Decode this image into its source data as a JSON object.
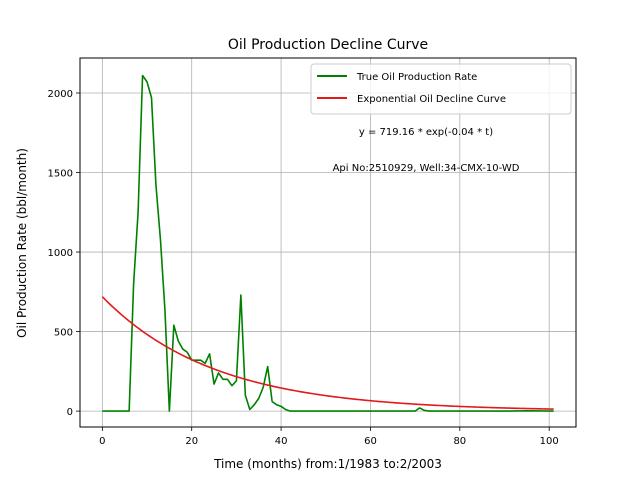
{
  "chart_data": {
    "type": "line",
    "title": "Oil Production Decline Curve",
    "xlabel": "Time (months) from:1/1983 to:2/2003",
    "ylabel": "Oil Production Rate (bbl/month)",
    "xlim": [
      -5,
      106
    ],
    "ylim": [
      -100,
      2220
    ],
    "xticks": [
      0,
      20,
      40,
      60,
      80,
      100
    ],
    "yticks": [
      0,
      500,
      1000,
      1500,
      2000
    ],
    "grid": true,
    "legend_position": "top-right",
    "annotations": [
      "y = 719.16 * exp(-0.04 * t)",
      "Api No:2510929, Well:34-CMX-10-WD"
    ],
    "series": [
      {
        "name": "True Oil Production Rate",
        "color": "#008000",
        "points": [
          [
            0,
            0
          ],
          [
            1,
            0
          ],
          [
            2,
            0
          ],
          [
            3,
            0
          ],
          [
            4,
            0
          ],
          [
            5,
            0
          ],
          [
            6,
            0
          ],
          [
            7,
            800
          ],
          [
            8,
            1250
          ],
          [
            9,
            2110
          ],
          [
            10,
            2070
          ],
          [
            11,
            1970
          ],
          [
            12,
            1420
          ],
          [
            13,
            1080
          ],
          [
            14,
            640
          ],
          [
            15,
            0
          ],
          [
            16,
            540
          ],
          [
            17,
            440
          ],
          [
            18,
            390
          ],
          [
            19,
            370
          ],
          [
            20,
            320
          ],
          [
            21,
            320
          ],
          [
            22,
            320
          ],
          [
            23,
            300
          ],
          [
            24,
            360
          ],
          [
            25,
            170
          ],
          [
            26,
            240
          ],
          [
            27,
            200
          ],
          [
            28,
            200
          ],
          [
            29,
            160
          ],
          [
            30,
            190
          ],
          [
            31,
            730
          ],
          [
            32,
            100
          ],
          [
            33,
            10
          ],
          [
            34,
            40
          ],
          [
            35,
            80
          ],
          [
            36,
            150
          ],
          [
            37,
            280
          ],
          [
            38,
            60
          ],
          [
            39,
            40
          ],
          [
            40,
            30
          ],
          [
            41,
            10
          ],
          [
            42,
            0
          ],
          [
            50,
            0
          ],
          [
            60,
            0
          ],
          [
            70,
            0
          ],
          [
            71,
            20
          ],
          [
            72,
            5
          ],
          [
            73,
            0
          ],
          [
            80,
            0
          ],
          [
            90,
            0
          ],
          [
            95,
            2
          ],
          [
            101,
            0
          ]
        ]
      },
      {
        "name": "Exponential Oil Decline Curve",
        "color": "#e31a1c",
        "function": {
          "a": 719.16,
          "b": -0.04,
          "x_start": 0,
          "x_end": 101
        }
      }
    ]
  }
}
